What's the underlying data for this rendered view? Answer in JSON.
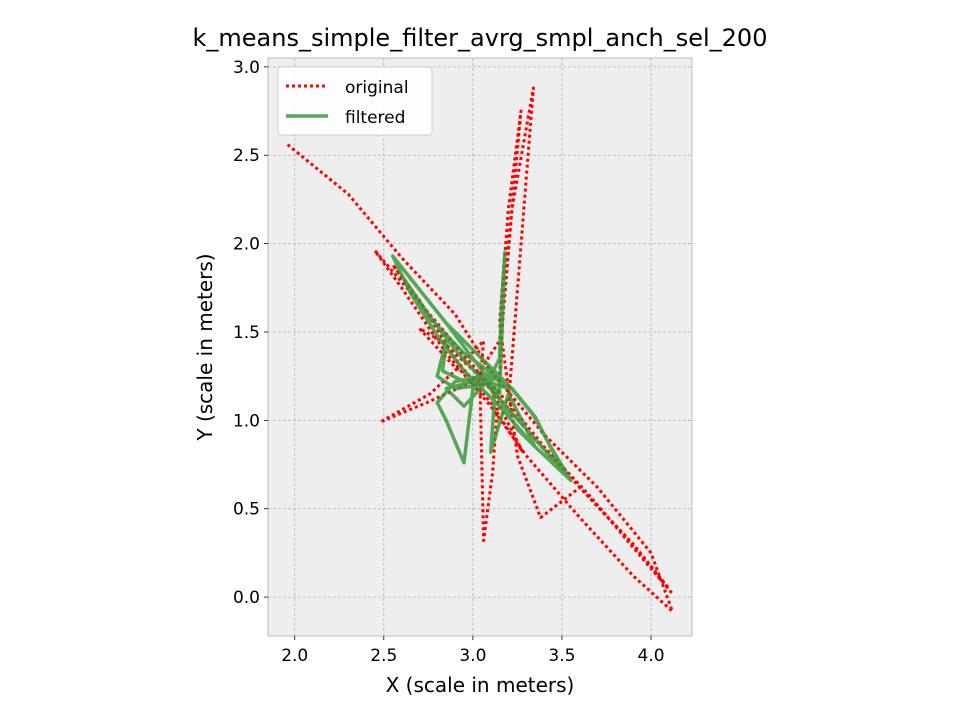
{
  "chart_data": {
    "type": "line",
    "title": "k_means_simple_filter_avrg_smpl_anch_sel_200",
    "xlabel": "X (scale in meters)",
    "ylabel": "Y (scale in meters)",
    "xlim": [
      1.85,
      4.23
    ],
    "ylim": [
      -0.22,
      3.05
    ],
    "xticks": [
      "2.0",
      "2.5",
      "3.0",
      "3.5",
      "4.0"
    ],
    "yticks": [
      "0.0",
      "0.5",
      "1.0",
      "1.5",
      "2.0",
      "2.5",
      "3.0"
    ],
    "grid": true,
    "legend_position": "top-left",
    "series": [
      {
        "name": "original",
        "color": "#ff0000",
        "style": "dotted",
        "x": [
          1.96,
          2.3,
          2.6,
          2.9,
          3.1,
          3.4,
          3.7,
          4.0,
          4.12,
          3.9,
          3.6,
          3.3,
          3.1,
          2.85,
          2.6,
          2.45,
          2.8,
          3.05,
          3.2,
          3.34,
          3.22,
          3.17,
          3.14,
          3.11,
          3.06,
          3.04,
          3.06,
          2.92,
          2.76,
          2.48,
          2.74,
          3.0,
          3.15,
          3.27,
          3.2,
          3.15,
          3.25,
          3.38,
          3.6,
          3.85,
          4.1,
          3.9,
          3.6,
          3.3,
          3.05,
          2.82,
          2.7,
          2.9,
          3.1,
          3.28,
          3.1,
          2.9,
          2.7,
          2.55,
          2.75,
          3.0,
          3.2,
          3.4,
          3.65,
          3.9,
          4.12
        ],
        "y": [
          2.56,
          2.28,
          1.92,
          1.6,
          1.28,
          0.92,
          0.62,
          0.25,
          -0.08,
          0.12,
          0.45,
          0.8,
          1.08,
          1.38,
          1.75,
          1.96,
          1.55,
          1.25,
          1.1,
          2.88,
          2.2,
          1.6,
          1.1,
          0.7,
          0.32,
          1.2,
          1.45,
          1.3,
          1.15,
          0.99,
          1.1,
          1.22,
          1.45,
          2.75,
          2.2,
          1.55,
          0.8,
          0.45,
          0.62,
          0.35,
          0.05,
          0.3,
          0.62,
          0.95,
          1.24,
          1.45,
          1.52,
          1.3,
          1.18,
          0.82,
          1.1,
          1.35,
          1.68,
          1.88,
          1.6,
          1.3,
          1.1,
          0.85,
          0.58,
          0.28,
          0.02
        ]
      },
      {
        "name": "filtered",
        "color": "#3a9a3a",
        "style": "solid",
        "x": [
          2.55,
          2.7,
          2.85,
          3.0,
          3.1,
          3.2,
          3.34,
          3.42,
          3.55,
          3.35,
          3.15,
          2.95,
          2.8,
          2.65,
          2.55,
          2.85,
          3.0,
          3.1,
          3.15,
          3.18,
          3.16,
          3.15,
          3.1,
          3.05,
          3.0,
          2.95,
          2.85,
          2.8,
          2.9,
          3.05,
          3.15,
          3.25,
          3.35,
          3.2,
          3.1,
          3.12,
          3.1,
          3.05,
          2.9,
          2.8,
          2.85,
          2.83,
          2.95,
          3.08,
          3.22,
          3.35,
          3.5,
          3.3,
          3.08,
          2.9,
          2.75,
          2.6,
          2.72,
          2.95,
          3.1,
          3.2,
          3.08,
          2.95,
          2.85,
          3.0,
          3.1,
          3.0,
          3.15,
          3.08
        ],
        "y": [
          1.93,
          1.74,
          1.55,
          1.4,
          1.3,
          1.2,
          1.03,
          0.88,
          0.66,
          0.85,
          1.08,
          1.28,
          1.48,
          1.72,
          1.93,
          1.55,
          1.35,
          1.22,
          1.15,
          1.95,
          1.65,
          1.35,
          1.25,
          1.2,
          1.18,
          0.76,
          1.0,
          1.1,
          1.22,
          1.25,
          1.12,
          0.95,
          0.85,
          1.15,
          0.82,
          1.1,
          1.3,
          1.2,
          1.18,
          1.25,
          1.45,
          1.28,
          1.22,
          1.26,
          1.18,
          1.02,
          0.72,
          0.95,
          1.2,
          1.4,
          1.6,
          1.82,
          1.62,
          1.38,
          1.27,
          1.18,
          1.22,
          1.08,
          1.18,
          1.22,
          1.25,
          1.2,
          1.25,
          1.22
        ]
      }
    ]
  }
}
